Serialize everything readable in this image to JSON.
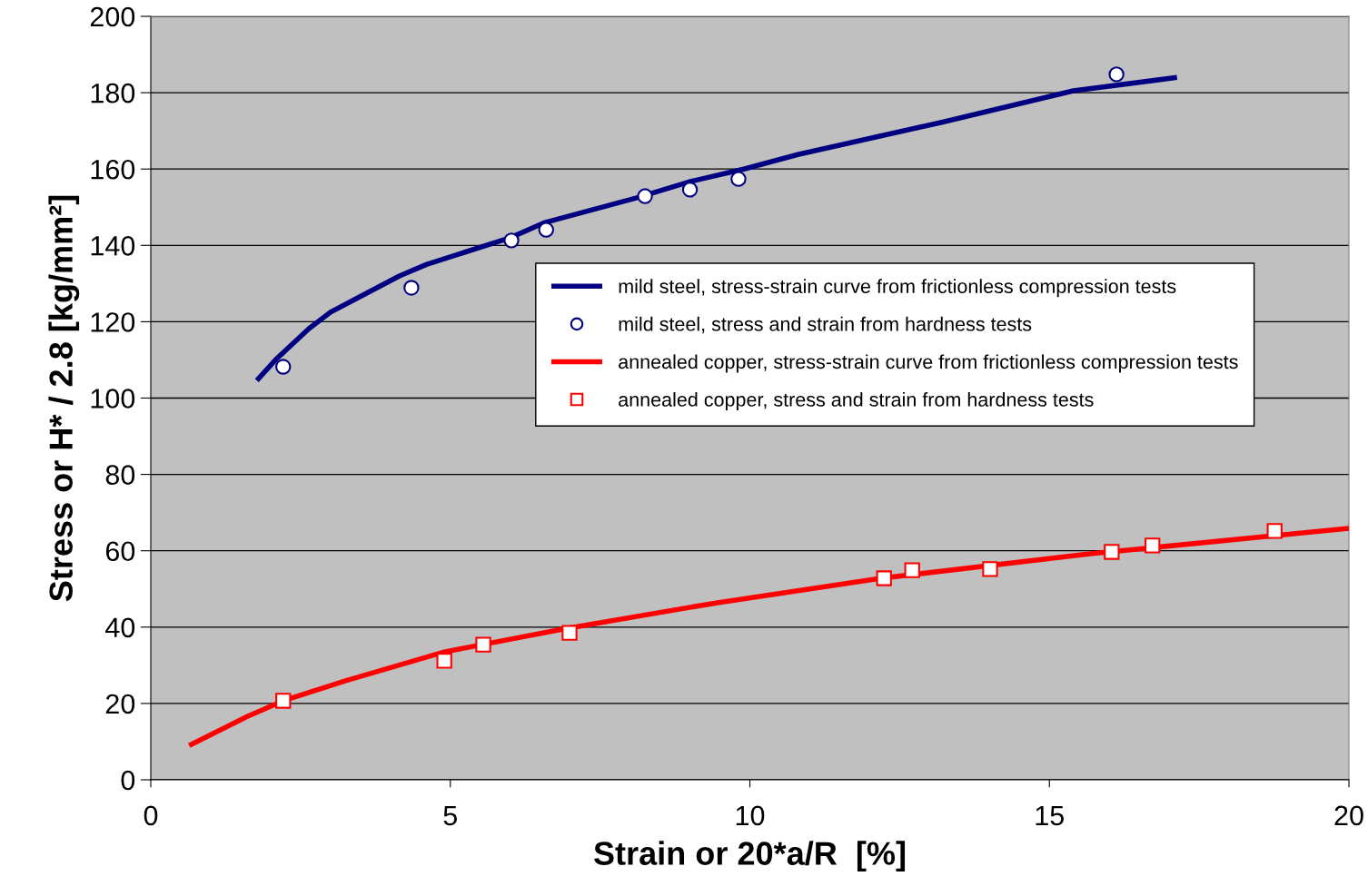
{
  "chart_data": {
    "type": "line",
    "xlabel": "Strain or 20*a/R  [%]",
    "ylabel": "Stress or H* / 2.8 [kg/mm²]",
    "xlim": [
      0,
      20
    ],
    "xticks": [
      0,
      5,
      10,
      15,
      20
    ],
    "ylim": [
      0,
      200
    ],
    "yticks": [
      0,
      20,
      40,
      60,
      80,
      100,
      120,
      140,
      160,
      180,
      200
    ],
    "grid": "y",
    "legend": "right",
    "series": [
      {
        "name": "mild steel, stress-strain curve from frictionless compression tests",
        "color": "#000080",
        "marker": "none",
        "x": [
          1.77,
          2.1,
          2.64,
          3.0,
          3.4,
          4.15,
          4.6,
          6.0,
          6.58,
          8.1,
          9.0,
          9.9,
          10.8,
          13.25,
          15.4,
          17.13
        ],
        "values": [
          104.6,
          110.3,
          118.2,
          122.5,
          125.8,
          132,
          135,
          142,
          146,
          152.4,
          156.7,
          160,
          163.8,
          172.4,
          180.5,
          184
        ]
      },
      {
        "name": "mild steel, stress and strain from hardness tests",
        "type": "scatter",
        "color": "#000080",
        "marker": "circle",
        "x": [
          2.21,
          4.35,
          6.02,
          6.6,
          8.25,
          9.0,
          9.81,
          16.12
        ],
        "values": [
          108.2,
          128.9,
          141.3,
          144.1,
          152.9,
          154.6,
          157.4,
          184.8
        ]
      },
      {
        "name": "annealed copper, stress-strain curve from frictionless compression tests",
        "color": "#ff0000",
        "marker": "none",
        "x": [
          0.64,
          1.61,
          2.21,
          3.24,
          4.9,
          6.88,
          9.46,
          12.19,
          15.68,
          20
        ],
        "values": [
          9.0,
          16.6,
          20.7,
          25.9,
          33.5,
          39.5,
          46.4,
          52.8,
          59.2,
          65.9
        ]
      },
      {
        "name": "annealed copper, stress and strain from hardness tests",
        "type": "scatter",
        "color": "#ff0000",
        "marker": "square",
        "x": [
          2.21,
          4.9,
          5.55,
          6.99,
          12.24,
          12.71,
          14.01,
          16.04,
          16.72,
          18.76
        ],
        "values": [
          20.7,
          31.2,
          35.4,
          38.5,
          52.8,
          54.9,
          55.2,
          59.7,
          61.4,
          65.2
        ]
      }
    ]
  }
}
